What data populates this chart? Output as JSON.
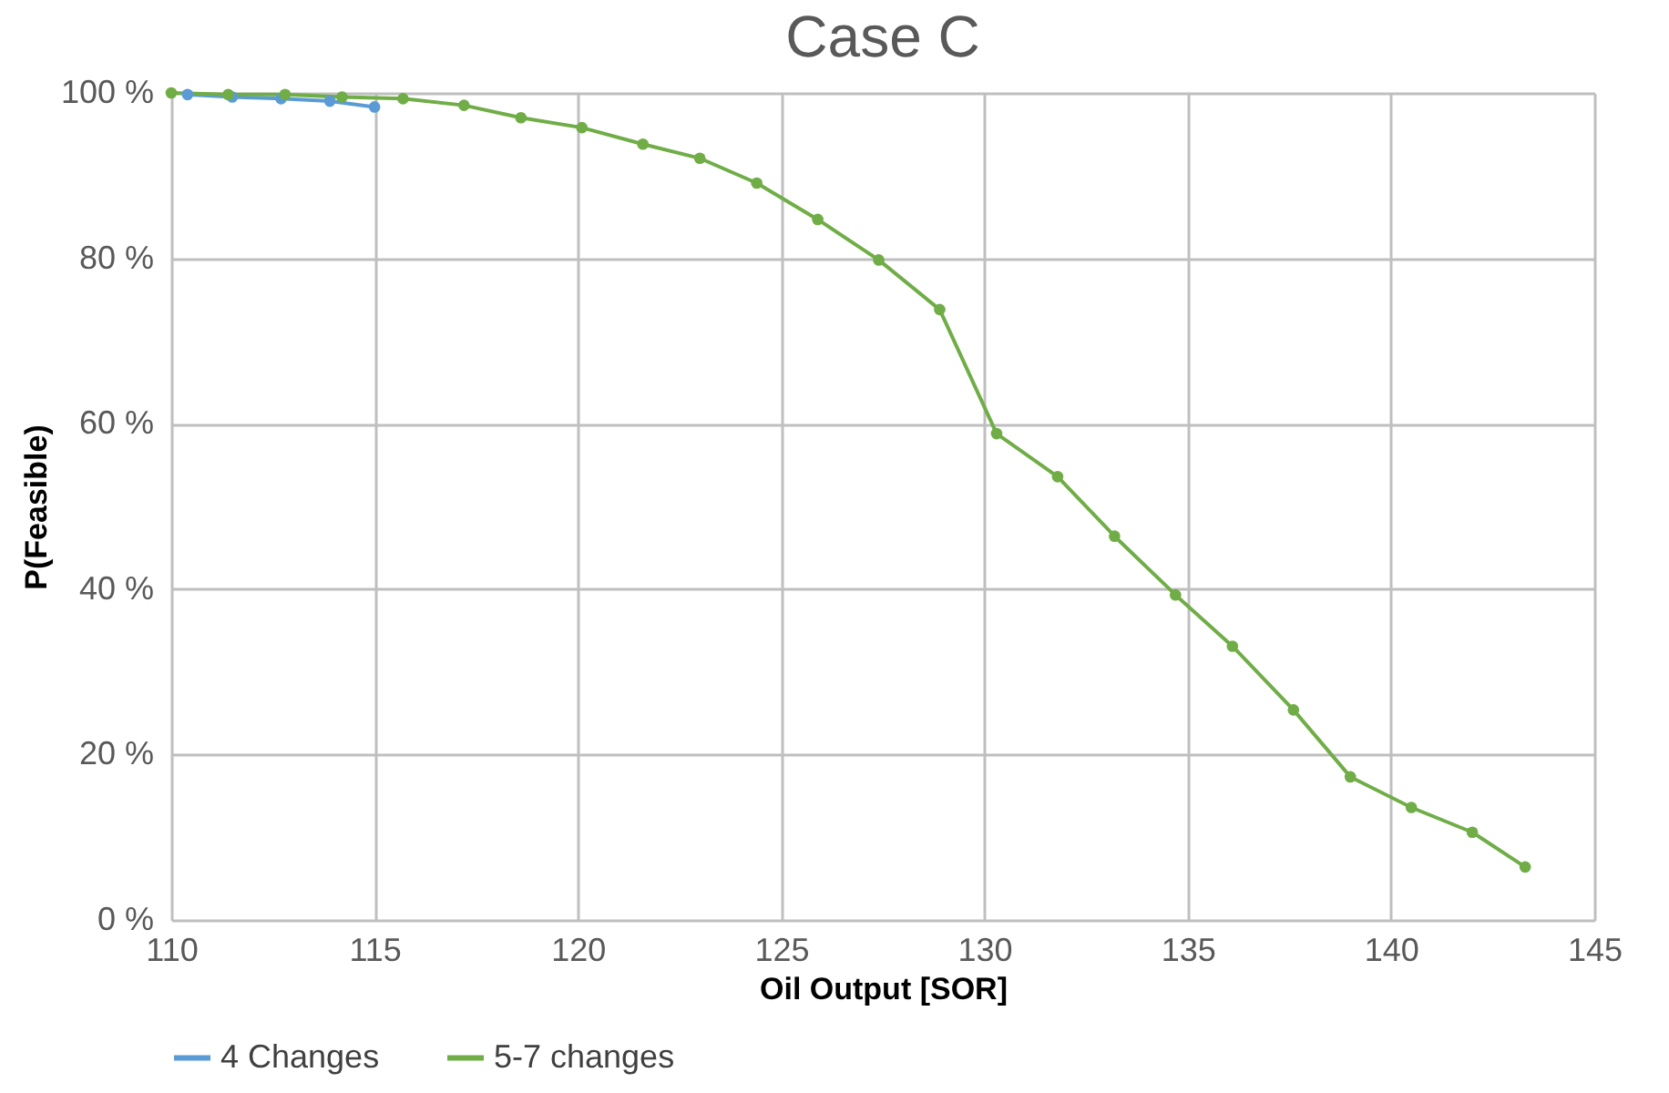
{
  "chart_data": {
    "type": "line",
    "title": "Case C",
    "xlabel": "Oil Output [SOR]",
    "ylabel": "P(Feasible)",
    "xlim": [
      110,
      145
    ],
    "xticks": [
      110,
      115,
      120,
      125,
      130,
      135,
      140,
      145
    ],
    "ylim": [
      0,
      100
    ],
    "yticks": [
      {
        "value": 0,
        "label": "0 %"
      },
      {
        "value": 20,
        "label": "20 %"
      },
      {
        "value": 40,
        "label": "40 %"
      },
      {
        "value": 60,
        "label": "60 %"
      },
      {
        "value": 80,
        "label": "80 %"
      },
      {
        "value": 100,
        "label": "100 %"
      }
    ],
    "grid": true,
    "legend": "bottom",
    "marker": "circle",
    "line_style": "solid",
    "series": [
      {
        "name": "4 Changes",
        "color": "#5b9bd5",
        "x": [
          110.4,
          111.5,
          112.7,
          113.9,
          115.0
        ],
        "values": [
          99.8,
          99.5,
          99.3,
          99.0,
          98.3
        ]
      },
      {
        "name": "5-7 changes",
        "color": "#70ad47",
        "x": [
          110.0,
          111.4,
          112.8,
          114.2,
          115.7,
          117.2,
          118.6,
          120.1,
          121.6,
          123.0,
          124.4,
          125.9,
          127.4,
          128.9,
          130.3,
          131.8,
          133.2,
          134.7,
          136.1,
          137.6,
          139.0,
          140.5,
          142.0,
          143.3
        ],
        "values": [
          100,
          99.8,
          99.8,
          99.5,
          99.3,
          98.5,
          97.0,
          95.8,
          93.8,
          92.1,
          89.1,
          84.7,
          79.8,
          73.8,
          58.8,
          53.6,
          46.4,
          39.3,
          33.1,
          25.4,
          17.3,
          13.6,
          10.6,
          6.4
        ]
      }
    ]
  }
}
